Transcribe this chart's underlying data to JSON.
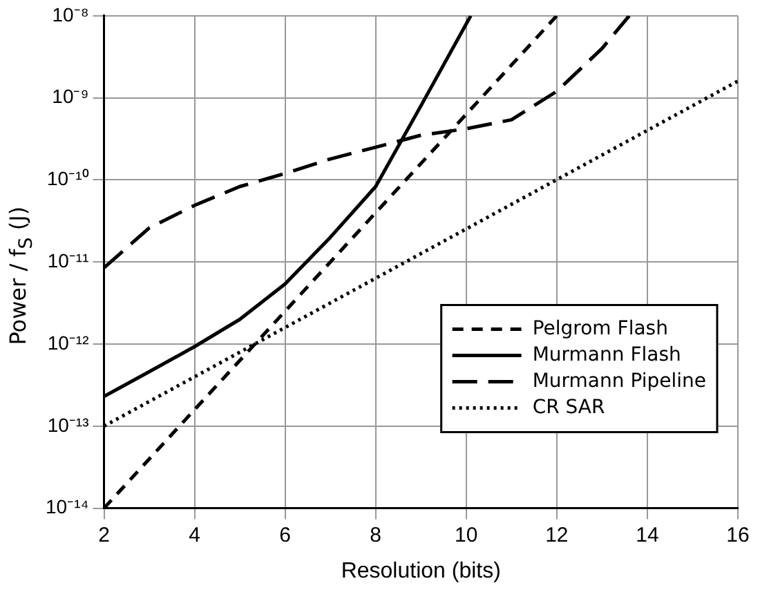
{
  "chart_data": {
    "type": "line",
    "xlabel": "Resolution (bits)",
    "ylabel": "Power / f$_{S}$ (J)",
    "log": "y",
    "xlim": [
      2,
      16
    ],
    "xticks": [
      2,
      4,
      6,
      8,
      10,
      12,
      14,
      16
    ],
    "ylim": [
      1e-14,
      1e-08
    ],
    "yticks": [
      {
        "value": 1e-14,
        "label": "10⁻¹⁴"
      },
      {
        "value": 1e-13,
        "label": "10⁻¹³"
      },
      {
        "value": 1e-12,
        "label": "10⁻¹²"
      },
      {
        "value": 1e-11,
        "label": "10⁻¹¹"
      },
      {
        "value": 1e-10,
        "label": "10⁻¹⁰"
      },
      {
        "value": 1e-09,
        "label": "10⁻⁹"
      },
      {
        "value": 1e-08,
        "label": "10⁻⁸"
      }
    ],
    "grid": true,
    "legend": "bottom right",
    "marker": "none",
    "series": [
      {
        "name": "Pelgrom Flash",
        "color": "#000000",
        "line_style": "dashed",
        "x": [
          2,
          12
        ],
        "values": [
          1e-14,
          1e-08
        ]
      },
      {
        "name": "Murmann Flash",
        "color": "#000000",
        "line_style": "solid",
        "x": [
          2,
          3,
          4,
          5,
          6,
          7,
          8,
          9,
          10.1
        ],
        "values": [
          2.3e-13,
          4.6e-13,
          9.3e-13,
          2e-12,
          5.4e-12,
          2e-11,
          8.3e-11,
          8e-10,
          1e-08
        ]
      },
      {
        "name": "Murmann Pipeline",
        "color": "#000000",
        "line_style": "longdash",
        "x": [
          2,
          3,
          4,
          5,
          6,
          7,
          8,
          9,
          10,
          11,
          12,
          13,
          13.6
        ],
        "values": [
          8.5e-12,
          2.6e-11,
          4.9e-11,
          8.3e-11,
          1.2e-10,
          1.8e-10,
          2.5e-10,
          3.5e-10,
          4.2e-10,
          5.4e-10,
          1.2e-09,
          4e-09,
          1e-08
        ]
      },
      {
        "name": "CR SAR",
        "color": "#000000",
        "line_style": "dotted",
        "x": [
          2,
          16
        ],
        "values": [
          1e-13,
          1.6e-09
        ]
      }
    ]
  }
}
